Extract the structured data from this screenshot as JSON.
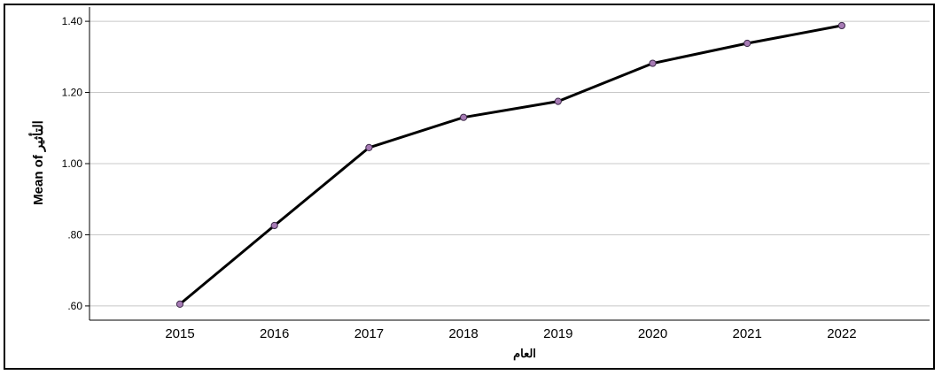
{
  "chart_data": {
    "type": "line",
    "title": "",
    "xlabel": "العام",
    "ylabel": "Mean of التأثير",
    "x": [
      "2015",
      "2016",
      "2017",
      "2018",
      "2019",
      "2020",
      "2021",
      "2022"
    ],
    "series": [
      {
        "values": [
          0.605,
          0.826,
          1.045,
          1.13,
          1.175,
          1.282,
          1.338,
          1.388
        ]
      }
    ],
    "ylim": [
      0.56,
      1.44
    ],
    "yticks": [
      0.6,
      0.8,
      1.0,
      1.2,
      1.4
    ],
    "ytick_labels": [
      ".60",
      ".80",
      "1.00",
      "1.20",
      "1.40"
    ],
    "grid": true,
    "line_color": "#000000",
    "marker_fill": "#a77bb5",
    "marker_stroke": "#3d2a4a",
    "grid_color": "#c8c8c8"
  }
}
